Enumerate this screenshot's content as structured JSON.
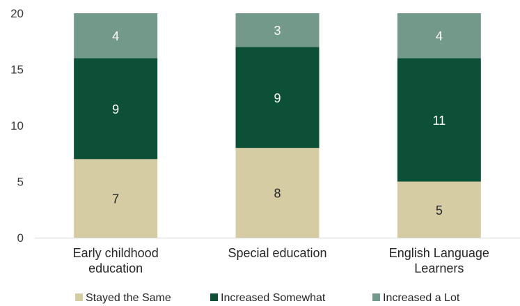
{
  "chart_data": {
    "type": "bar",
    "stacked": true,
    "categories": [
      [
        "Early childhood",
        "education"
      ],
      [
        "Special education"
      ],
      [
        "English Language",
        "Learners"
      ]
    ],
    "series": [
      {
        "name": "Stayed the Same",
        "values": [
          7,
          8,
          5
        ],
        "color": "#d6cca3",
        "label_color": "#262626"
      },
      {
        "name": "Increased Somewhat",
        "values": [
          9,
          9,
          11
        ],
        "color": "#0d5038",
        "label_color": "#ffffff"
      },
      {
        "name": "Increased a Lot",
        "values": [
          4,
          3,
          4
        ],
        "color": "#72998a",
        "label_color": "#ffffff"
      }
    ],
    "ylim": [
      0,
      20
    ],
    "yticks": [
      0,
      5,
      10,
      15,
      20
    ],
    "grid": false,
    "legend": "bottom"
  }
}
